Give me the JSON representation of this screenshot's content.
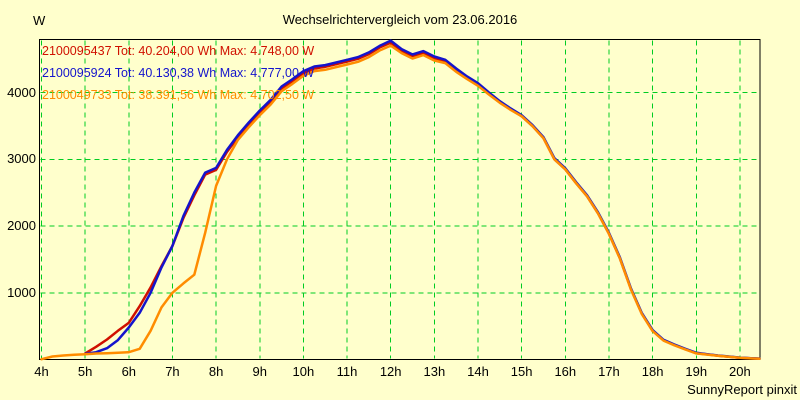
{
  "chart": {
    "title": "Wechselrichtervergleich vom 23.06.2016",
    "y_axis_unit": "W",
    "footer": "SunnyReport pinxit",
    "legend": [
      {
        "label": "2100095437 Tot: 40.204,00 Wh Max: 4.748,00 W",
        "color": "#d01000"
      },
      {
        "label": "2100095924 Tot: 40.130,38 Wh Max: 4.777,00 W",
        "color": "#1414cc"
      },
      {
        "label": "2100049733 Tot: 38.391,56 Wh Max: 4.702,50 W",
        "color": "#ff8c00"
      }
    ]
  },
  "colors": {
    "background": "#ffffcc",
    "grid": "#00cc22",
    "axis_border": "#000000",
    "text": "#000000",
    "series_red": "#d01000",
    "series_blue": "#1414cc",
    "series_orange": "#ff8c00"
  },
  "chart_data": {
    "type": "line",
    "title": "Wechselrichtervergleich vom 23.06.2016",
    "xlabel": "",
    "ylabel": "W",
    "xlim": [
      4,
      20.45
    ],
    "ylim": [
      0,
      4794
    ],
    "grid": true,
    "grid_style": "dashed",
    "legend_position": "top-left",
    "x_ticks": [
      "4h",
      "5h",
      "6h",
      "7h",
      "8h",
      "9h",
      "10h",
      "11h",
      "12h",
      "13h",
      "14h",
      "15h",
      "16h",
      "17h",
      "18h",
      "19h",
      "20h"
    ],
    "y_ticks": [
      1000,
      2000,
      3000,
      4000
    ],
    "x": [
      4,
      4.25,
      4.5,
      4.75,
      5,
      5.25,
      5.5,
      5.75,
      6,
      6.25,
      6.5,
      6.75,
      7,
      7.25,
      7.5,
      7.75,
      8,
      8.25,
      8.5,
      8.75,
      9,
      9.25,
      9.5,
      9.75,
      10,
      10.25,
      10.5,
      10.75,
      11,
      11.25,
      11.5,
      11.75,
      12,
      12.25,
      12.5,
      12.75,
      13,
      13.25,
      13.5,
      13.75,
      14,
      14.25,
      14.5,
      14.75,
      15,
      15.25,
      15.5,
      15.75,
      16,
      16.25,
      16.5,
      16.75,
      17,
      17.25,
      17.5,
      17.75,
      18,
      18.25,
      18.5,
      18.75,
      19,
      19.25,
      19.5,
      19.75,
      20,
      20.25,
      20.45
    ],
    "series": [
      {
        "name": "2100095437",
        "total": "40.204,00 Wh",
        "max": "4.748,00 W",
        "color": "#d01000",
        "values": [
          null,
          null,
          null,
          null,
          90,
          190,
          300,
          430,
          550,
          800,
          1080,
          1400,
          1700,
          2120,
          2460,
          2770,
          2840,
          3110,
          3330,
          3520,
          3700,
          3860,
          4060,
          4170,
          4290,
          4360,
          4385,
          4425,
          4465,
          4505,
          4575,
          4675,
          4748,
          4625,
          4545,
          4595,
          4515,
          4465,
          4340,
          4220,
          4120,
          3985,
          3855,
          3745,
          3645,
          3495,
          3315,
          3000,
          2850,
          2640,
          2445,
          2190,
          1885,
          1515,
          1060,
          690,
          430,
          288,
          218,
          155,
          95,
          76,
          57,
          42,
          26,
          18,
          13
        ]
      },
      {
        "name": "2100095924",
        "total": "40.130,38 Wh",
        "max": "4.777,00 W",
        "color": "#1414cc",
        "values": [
          null,
          null,
          null,
          null,
          85,
          110,
          170,
          290,
          480,
          700,
          1000,
          1380,
          1700,
          2150,
          2500,
          2800,
          2870,
          3140,
          3360,
          3550,
          3730,
          3890,
          4090,
          4200,
          4320,
          4390,
          4410,
          4450,
          4490,
          4530,
          4600,
          4700,
          4777,
          4650,
          4570,
          4620,
          4540,
          4490,
          4360,
          4240,
          4140,
          4000,
          3870,
          3760,
          3660,
          3510,
          3330,
          3015,
          2865,
          2655,
          2460,
          2205,
          1900,
          1530,
          1070,
          700,
          440,
          295,
          225,
          160,
          100,
          80,
          60,
          45,
          28,
          20,
          14
        ]
      },
      {
        "name": "2100049733",
        "total": "38.391,56 Wh",
        "max": "4.702,50 W",
        "color": "#ff8c00",
        "values": [
          5,
          45,
          60,
          70,
          80,
          90,
          95,
          100,
          110,
          160,
          430,
          780,
          1000,
          1140,
          1270,
          1900,
          2600,
          3000,
          3290,
          3480,
          3660,
          3820,
          4020,
          4130,
          4250,
          4320,
          4340,
          4380,
          4420,
          4460,
          4530,
          4630,
          4702,
          4590,
          4510,
          4560,
          4480,
          4440,
          4310,
          4200,
          4100,
          3970,
          3845,
          3740,
          3645,
          3495,
          3315,
          3000,
          2850,
          2640,
          2445,
          2190,
          1885,
          1515,
          1055,
          685,
          425,
          283,
          213,
          152,
          92,
          74,
          56,
          41,
          25,
          17,
          12
        ]
      }
    ]
  }
}
